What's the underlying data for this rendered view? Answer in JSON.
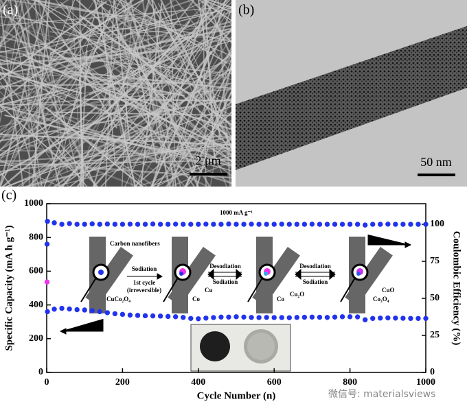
{
  "panels": {
    "a": {
      "label": "(a)",
      "scale_bar": "2 μm"
    },
    "b": {
      "label": "(b)",
      "scale_bar": "50 nm"
    },
    "c": {
      "label": "(c)"
    }
  },
  "watermark": "微信号: materialsviews",
  "schematic": {
    "fiber": "Carbon nanofibers",
    "step1": "Sodiation",
    "step1_note1": "1st cycle",
    "step1_note2": "(irreversible)",
    "start": "CuCo₂O₄",
    "s1_cu": "Cu",
    "s1_co": "Co",
    "step2a": "Desodiation",
    "step2b": "Sodiation",
    "s2_cu2o": "Cu₂O",
    "s2_co": "Co",
    "step3a": "Desodiation",
    "step3b": "Sodiation",
    "s3_cuo": "CuO",
    "s3_co3o4": "Co₃O₄"
  },
  "chart_data": {
    "type": "scatter",
    "annotation": "1000 mA g⁻¹",
    "x_label": "Cycle Number (n)",
    "y_label": "Specific Capacity (mA h g⁻¹)",
    "y2_label": "Coulombic Efficiency (%)",
    "xlim": [
      0,
      1000
    ],
    "xticks": [
      0,
      200,
      400,
      600,
      800,
      1000
    ],
    "ylim": [
      0,
      1000
    ],
    "yticks": [
      0,
      200,
      400,
      600,
      800,
      1000
    ],
    "y2lim": [
      0,
      113.9
    ],
    "y2ticks": [
      0,
      25,
      50,
      75,
      100
    ],
    "series": [
      {
        "color": "#2233ee",
        "x": [
          1,
          2,
          20,
          40,
          60,
          80,
          100,
          120,
          140,
          160,
          180,
          200,
          220,
          240,
          260,
          280,
          300,
          320,
          340,
          360,
          380,
          400,
          420,
          440,
          460,
          480,
          500,
          520,
          540,
          560,
          580,
          600,
          620,
          640,
          660,
          680,
          700,
          720,
          740,
          760,
          780,
          800,
          820,
          840,
          860,
          880,
          900,
          920,
          940,
          960,
          980,
          1000
        ],
        "values": [
          760,
          360,
          375,
          380,
          376,
          372,
          370,
          366,
          360,
          354,
          348,
          344,
          340,
          338,
          336,
          335,
          334,
          332,
          330,
          326,
          320,
          318,
          322,
          325,
          328,
          328,
          330,
          328,
          326,
          325,
          326,
          325,
          325,
          324,
          326,
          327,
          328,
          327,
          326,
          328,
          330,
          330,
          329,
          312,
          320,
          322,
          323,
          322,
          321,
          320,
          320,
          320
        ]
      },
      {
        "color": "#ee33ee",
        "x": [
          1
        ],
        "values": [
          536
        ]
      },
      {
        "color": "#2233ee",
        "axis": "y2",
        "x": [
          2,
          20,
          40,
          60,
          80,
          100,
          120,
          140,
          160,
          180,
          200,
          220,
          240,
          260,
          280,
          300,
          320,
          340,
          360,
          380,
          400,
          420,
          440,
          460,
          480,
          500,
          520,
          540,
          560,
          580,
          600,
          620,
          640,
          660,
          680,
          700,
          720,
          740,
          760,
          780,
          800,
          820,
          840,
          860,
          880,
          900,
          920,
          940,
          960,
          980,
          1000
        ],
        "values": [
          102,
          101,
          100,
          100.5,
          100,
          100,
          100.3,
          100,
          100.2,
          100,
          100,
          100.1,
          100,
          100,
          100.2,
          100,
          100,
          100.1,
          100,
          100,
          100,
          100.1,
          100,
          100,
          100.2,
          100,
          100,
          100.1,
          100,
          100,
          100,
          100.1,
          100,
          100,
          100,
          100.1,
          100,
          100,
          100,
          100,
          100,
          100,
          99.5,
          100,
          100,
          100.1,
          100,
          100,
          100,
          100,
          100
        ]
      }
    ]
  }
}
